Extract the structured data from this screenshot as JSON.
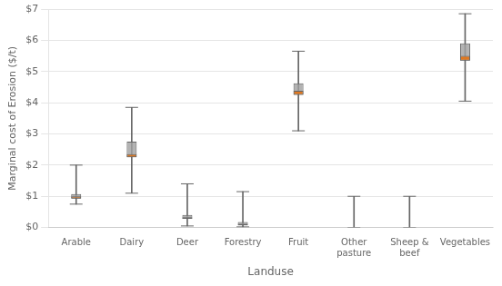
{
  "chart_data": {
    "type": "box",
    "xlabel": "Landuse",
    "ylabel": "Marginal cost of Erosion ($/t)",
    "categories": [
      "Arable",
      "Dairy",
      "Deer",
      "Forestry",
      "Fruit",
      "Other\npasture",
      "Sheep &\nbeef",
      "Vegetables"
    ],
    "boxes": [
      {
        "whisker_low": 0.75,
        "box_low": 0.93,
        "median": 1.0,
        "box_high": 1.07,
        "whisker_high": 2.0
      },
      {
        "whisker_low": 1.1,
        "box_low": 2.25,
        "median": 2.35,
        "box_high": 2.75,
        "whisker_high": 3.85
      },
      {
        "whisker_low": 0.05,
        "box_low": 0.28,
        "median": 0.33,
        "box_high": 0.4,
        "whisker_high": 1.4
      },
      {
        "whisker_low": 0.02,
        "box_low": 0.07,
        "median": 0.12,
        "box_high": 0.18,
        "whisker_high": 1.15
      },
      {
        "whisker_low": 3.1,
        "box_low": 4.25,
        "median": 4.38,
        "box_high": 4.62,
        "whisker_high": 5.65
      },
      {
        "whisker_low": 0.0,
        "box_low": null,
        "median": null,
        "box_high": null,
        "whisker_high": 1.0
      },
      {
        "whisker_low": 0.0,
        "box_low": null,
        "median": null,
        "box_high": null,
        "whisker_high": 1.0
      },
      {
        "whisker_low": 4.05,
        "box_low": 5.35,
        "median": 5.5,
        "box_high": 5.9,
        "whisker_high": 6.85
      }
    ],
    "color": "#e07820",
    "ylim": [
      0,
      7
    ],
    "yticks": [
      {
        "value": 0,
        "label": "$0"
      },
      {
        "value": 1,
        "label": "$1"
      },
      {
        "value": 2,
        "label": "$2"
      },
      {
        "value": 3,
        "label": "$3"
      },
      {
        "value": 4,
        "label": "$4"
      },
      {
        "value": 5,
        "label": "$5"
      },
      {
        "value": 6,
        "label": "$6"
      },
      {
        "value": 7,
        "label": "$7"
      }
    ],
    "grid": true
  }
}
